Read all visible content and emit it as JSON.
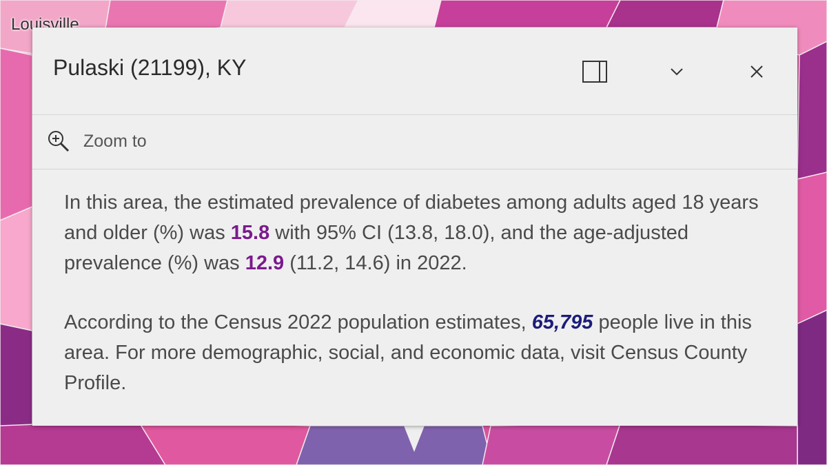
{
  "map": {
    "label": "Louisville"
  },
  "popup": {
    "title": "Pulaski (21199), KY",
    "actions": {
      "zoom_to": "Zoom to"
    },
    "paragraphs": [
      [
        "In this area, the estimated prevalence of diabetes among adults aged 18 years and older (%) was ",
        "15.8",
        " with 95% CI (13.8, 18.0), and the age-adjusted prevalence (%) was ",
        "12.9",
        " (11.2, 14.6) in 2022."
      ],
      [
        "According to the Census 2022 population estimates, ",
        "65,795",
        " people live in this area. For more demographic, social, and economic data, visit Census County Profile."
      ]
    ]
  }
}
